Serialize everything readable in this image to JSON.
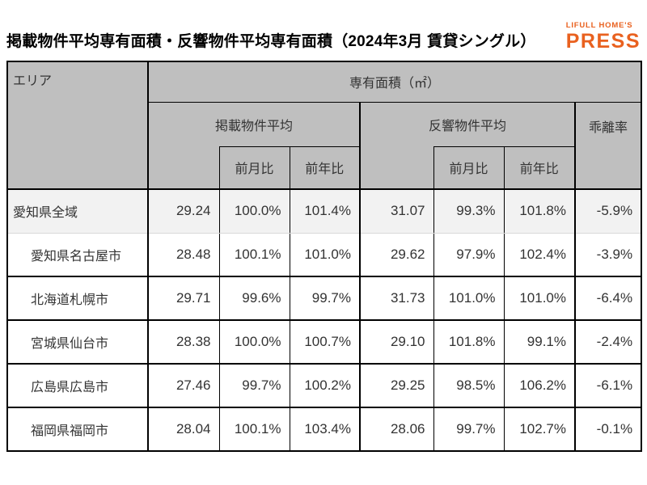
{
  "title": "掲載物件平均専有面積・反響物件平均専有面積（2024年3月 賃貸シングル）",
  "logo": {
    "brand": "LIFULL HOME'S",
    "name": "PRESS",
    "color": "#E9611F"
  },
  "colors": {
    "header_bg": "#BFBFBF",
    "row_highlight_bg": "#F2F2F2",
    "accent": "#E9611F",
    "border": "#000000"
  },
  "chart_data": {
    "type": "table",
    "title": "掲載物件平均専有面積・反響物件平均専有面積（2024年3月 賃貸シングル）",
    "header": {
      "area": "エリア",
      "group": "専有面積（㎡）",
      "listed_group": "掲載物件平均",
      "response_group": "反響物件平均",
      "divergence": "乖離率",
      "mom": "前月比",
      "yoy": "前年比"
    },
    "rows": [
      {
        "area": "愛知県全域",
        "indent": false,
        "listed_avg": "29.24",
        "listed_mom": "100.0%",
        "listed_yoy": "101.4%",
        "response_avg": "31.07",
        "response_mom": "99.3%",
        "response_yoy": "101.8%",
        "divergence": "-5.9%"
      },
      {
        "area": "愛知県名古屋市",
        "indent": true,
        "listed_avg": "28.48",
        "listed_mom": "100.1%",
        "listed_yoy": "101.0%",
        "response_avg": "29.62",
        "response_mom": "97.9%",
        "response_yoy": "102.4%",
        "divergence": "-3.9%"
      },
      {
        "area": "北海道札幌市",
        "indent": true,
        "listed_avg": "29.71",
        "listed_mom": "99.6%",
        "listed_yoy": "99.7%",
        "response_avg": "31.73",
        "response_mom": "101.0%",
        "response_yoy": "101.0%",
        "divergence": "-6.4%"
      },
      {
        "area": "宮城県仙台市",
        "indent": true,
        "listed_avg": "28.38",
        "listed_mom": "100.0%",
        "listed_yoy": "100.7%",
        "response_avg": "29.10",
        "response_mom": "101.8%",
        "response_yoy": "99.1%",
        "divergence": "-2.4%"
      },
      {
        "area": "広島県広島市",
        "indent": true,
        "listed_avg": "27.46",
        "listed_mom": "99.7%",
        "listed_yoy": "100.2%",
        "response_avg": "29.25",
        "response_mom": "98.5%",
        "response_yoy": "106.2%",
        "divergence": "-6.1%"
      },
      {
        "area": "福岡県福岡市",
        "indent": true,
        "listed_avg": "28.04",
        "listed_mom": "100.1%",
        "listed_yoy": "103.4%",
        "response_avg": "28.06",
        "response_mom": "99.7%",
        "response_yoy": "102.7%",
        "divergence": "-0.1%"
      }
    ]
  }
}
